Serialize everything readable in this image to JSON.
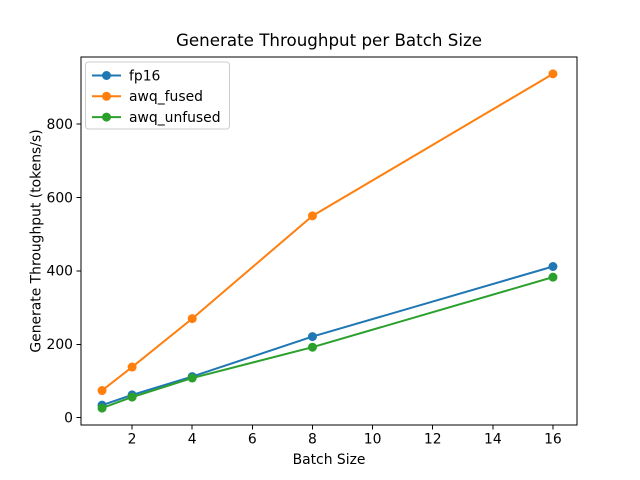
{
  "chart_data": {
    "type": "line",
    "title": "Generate Throughput per Batch Size",
    "xlabel": "Batch Size",
    "ylabel": "Generate Throughput (tokens/s)",
    "x": [
      1,
      2,
      4,
      8,
      16
    ],
    "series": [
      {
        "name": "fp16",
        "color": "#1f77b4",
        "marker": "o",
        "values": [
          34,
          62,
          112,
          221,
          412
        ]
      },
      {
        "name": "awq_fused",
        "color": "#ff7f0e",
        "marker": "o",
        "values": [
          74,
          138,
          270,
          550,
          937
        ]
      },
      {
        "name": "awq_unfused",
        "color": "#2ca02c",
        "marker": "o",
        "values": [
          26,
          56,
          108,
          192,
          383
        ]
      }
    ],
    "xticks": [
      2,
      4,
      6,
      8,
      10,
      12,
      14,
      16
    ],
    "yticks": [
      0,
      200,
      400,
      600,
      800
    ],
    "xlim": [
      0.3,
      16.8
    ],
    "ylim": [
      -20,
      983
    ],
    "grid": false,
    "legend": {
      "position": "upper-left",
      "border_color": "#cccccc",
      "background": "#ffffff"
    },
    "axis_color": "#000000",
    "text_color": "#000000",
    "background": "#ffffff"
  }
}
